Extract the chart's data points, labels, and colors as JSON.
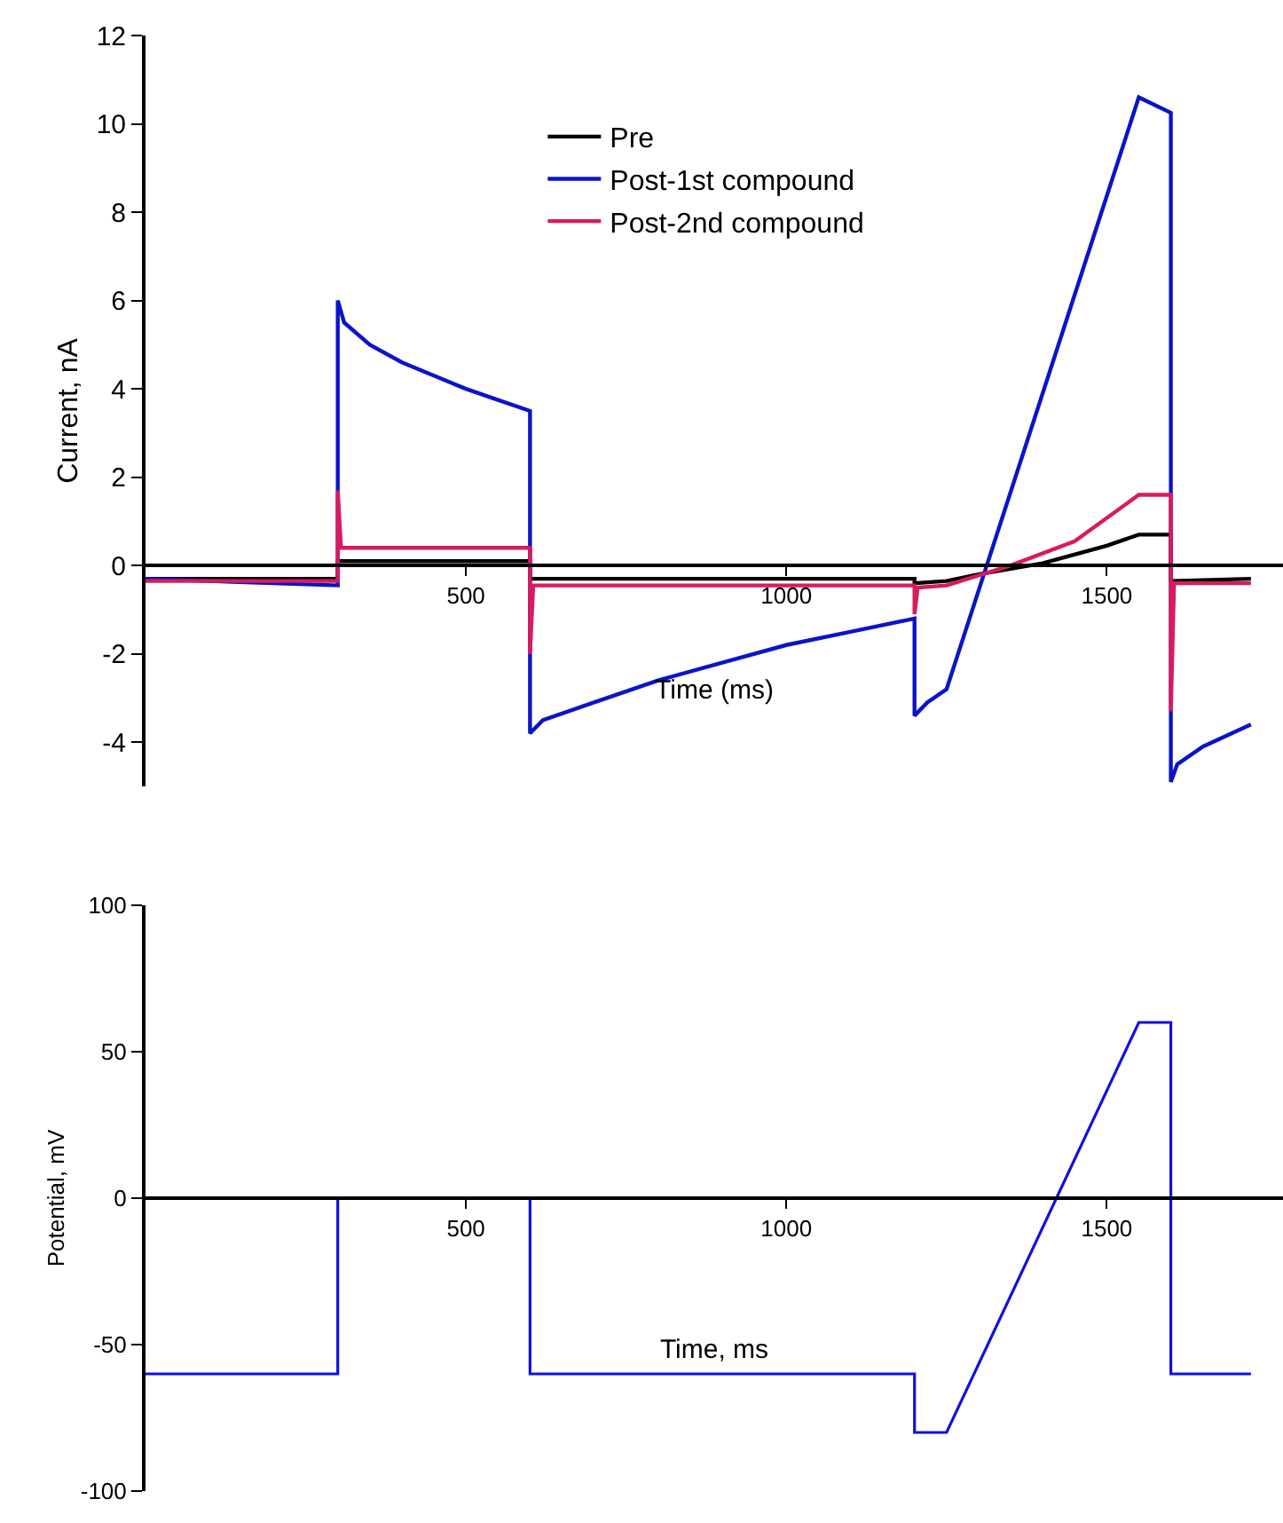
{
  "chart_data": [
    {
      "type": "line",
      "xlabel": "Time (ms)",
      "ylabel": "Current, nA",
      "xlim": [
        0,
        1775
      ],
      "ylim": [
        -5,
        12
      ],
      "xticks": [
        500,
        1000,
        1500
      ],
      "yticks": [
        -4,
        -2,
        0,
        2,
        4,
        6,
        8,
        10,
        12
      ],
      "legend": "top",
      "marker": "none",
      "line_style": "solid",
      "series": [
        {
          "name": "Pre",
          "color": "#000000",
          "x": [
            0,
            300,
            300,
            600,
            600,
            1200,
            1200,
            1250,
            1300,
            1400,
            1500,
            1550,
            1600,
            1600,
            1725
          ],
          "values": [
            -0.3,
            -0.3,
            0.1,
            0.1,
            -0.3,
            -0.3,
            -0.4,
            -0.35,
            -0.2,
            0.05,
            0.45,
            0.7,
            0.7,
            -0.35,
            -0.3
          ]
        },
        {
          "name": "Post-1st compound",
          "color": "#0a14c8",
          "x": [
            0,
            300,
            300,
            310,
            350,
            400,
            450,
            500,
            550,
            600,
            600,
            620,
            700,
            800,
            900,
            1000,
            1100,
            1200,
            1200,
            1220,
            1250,
            1550,
            1600,
            1600,
            1610,
            1650,
            1725
          ],
          "values": [
            -0.3,
            -0.45,
            6.0,
            5.5,
            5.0,
            4.6,
            4.3,
            4.0,
            3.75,
            3.5,
            -3.8,
            -3.5,
            -3.1,
            -2.6,
            -2.2,
            -1.8,
            -1.5,
            -1.2,
            -3.4,
            -3.1,
            -2.8,
            10.6,
            10.25,
            -4.9,
            -4.5,
            -4.1,
            -3.6
          ]
        },
        {
          "name": "Post-2nd compound",
          "color": "#d81b60",
          "x": [
            0,
            300,
            300,
            305,
            600,
            600,
            605,
            1200,
            1200,
            1205,
            1250,
            1350,
            1450,
            1550,
            1600,
            1600,
            1605,
            1725
          ],
          "values": [
            -0.35,
            -0.35,
            1.7,
            0.4,
            0.4,
            -2.0,
            -0.45,
            -0.45,
            -1.1,
            -0.5,
            -0.45,
            0.0,
            0.55,
            1.6,
            1.6,
            -3.3,
            -0.4,
            -0.4
          ]
        }
      ]
    },
    {
      "type": "line",
      "xlabel": "Time, ms",
      "ylabel": "Potential, mV",
      "xlim": [
        0,
        1775
      ],
      "ylim": [
        -100,
        100
      ],
      "xticks": [
        500,
        1000,
        1500
      ],
      "yticks": [
        -100,
        -50,
        0,
        50,
        100
      ],
      "legend": false,
      "marker": "none",
      "line_style": "solid",
      "series": [
        {
          "color": "#1010e0",
          "x": [
            0,
            300,
            300,
            600,
            600,
            1200,
            1200,
            1250,
            1550,
            1600,
            1600,
            1725
          ],
          "values": [
            -60,
            -60,
            0,
            0,
            -60,
            -60,
            -80,
            -80,
            60,
            60,
            -60,
            -60
          ]
        }
      ]
    }
  ]
}
